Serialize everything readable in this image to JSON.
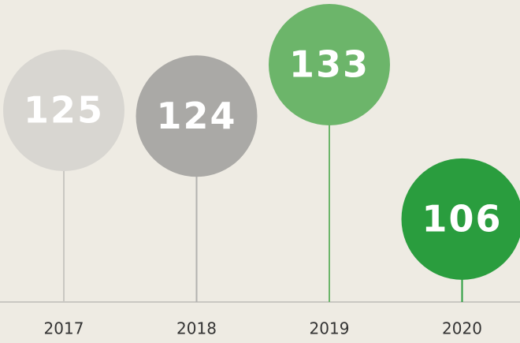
{
  "chart_data": {
    "type": "lollipop",
    "categories": [
      "2017",
      "2018",
      "2019",
      "2020"
    ],
    "values": [
      125,
      124,
      133,
      106
    ],
    "colors": [
      "#d8d6d1",
      "#aaa9a6",
      "#6cb56a",
      "#2a9d3e"
    ],
    "stem_colors": [
      "#c9c7c2",
      "#b3b2af",
      "#6cb56a",
      "#2a9d3e"
    ],
    "ylim": [
      91.5,
      144.3
    ]
  }
}
